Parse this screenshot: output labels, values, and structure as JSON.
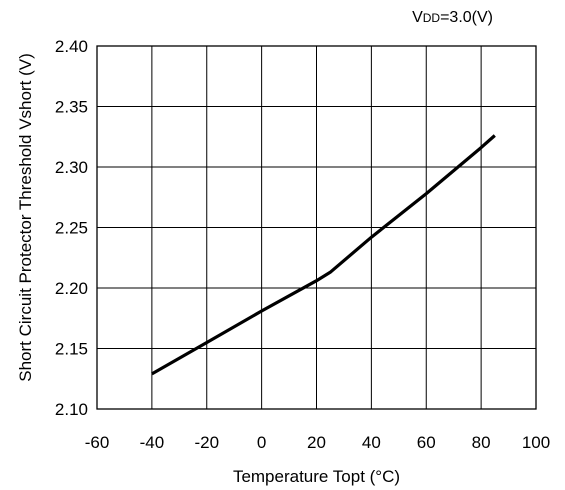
{
  "chart_data": {
    "type": "line",
    "xlabel": "Temperature Topt (°C)",
    "ylabel": "Short Circuit Protector Threshold Vshort (V)",
    "condition": {
      "prefix": "V",
      "subscript": "DD",
      "suffix": "=3.0(V)"
    },
    "xlim": [
      -60,
      100
    ],
    "ylim": [
      2.1,
      2.4
    ],
    "x_ticks": [
      -60,
      -40,
      -20,
      0,
      20,
      40,
      60,
      80,
      100
    ],
    "y_ticks": [
      2.1,
      2.15,
      2.2,
      2.25,
      2.3,
      2.35,
      2.4
    ],
    "x_tick_labels": [
      "-60",
      "-40",
      "-20",
      "0",
      "20",
      "40",
      "60",
      "80",
      "100"
    ],
    "y_tick_labels": [
      "2.10",
      "2.15",
      "2.20",
      "2.25",
      "2.30",
      "2.35",
      "2.40"
    ],
    "grid": true,
    "series": [
      {
        "color": "#000000",
        "x": [
          -40,
          -20,
          0,
          20,
          25,
          40,
          60,
          80,
          85
        ],
        "y": [
          2.129,
          2.155,
          2.181,
          2.206,
          2.213,
          2.242,
          2.278,
          2.316,
          2.326
        ]
      }
    ]
  }
}
